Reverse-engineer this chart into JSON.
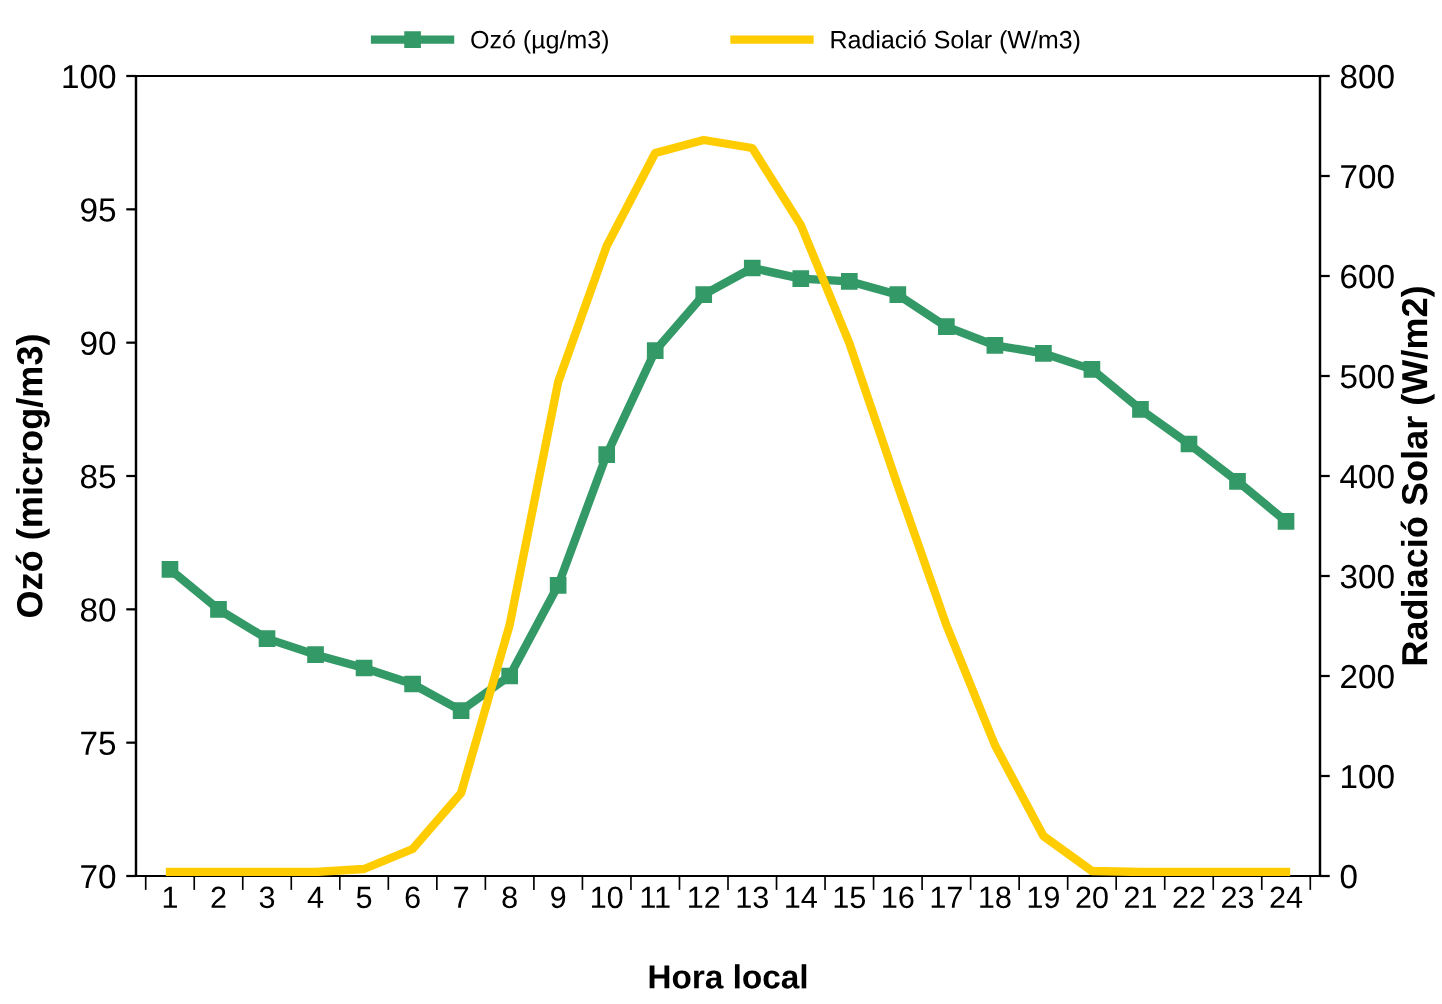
{
  "chart_data": {
    "type": "line",
    "xlabel": "Hora local",
    "ylabel": "Ozó (microg/m3)",
    "y2label": "Radiació Solar (W/m2)",
    "categories": [
      "1",
      "2",
      "3",
      "4",
      "5",
      "6",
      "7",
      "8",
      "9",
      "10",
      "11",
      "12",
      "13",
      "14",
      "15",
      "16",
      "17",
      "18",
      "19",
      "20",
      "21",
      "22",
      "23",
      "24"
    ],
    "series": [
      {
        "name": "Ozó (µg/m3)",
        "color": "#339966",
        "marker": "square",
        "values": [
          81.5,
          80.0,
          78.9,
          78.3,
          77.8,
          77.2,
          76.2,
          77.5,
          80.9,
          85.8,
          89.7,
          91.8,
          92.8,
          92.4,
          92.3,
          91.8,
          90.6,
          89.9,
          89.6,
          89.0,
          87.5,
          86.2,
          84.8,
          83.3
        ]
      },
      {
        "name": "Radiació Solar (W/m3)",
        "color": "#ffcc00",
        "marker": "none",
        "axis": "y2",
        "values": [
          4,
          4,
          4,
          4,
          7,
          27,
          83,
          251,
          494,
          630,
          723,
          736,
          728,
          651,
          533,
          390,
          251,
          131,
          40,
          5,
          4,
          4,
          4,
          4
        ]
      }
    ],
    "ylim": [
      70,
      100
    ],
    "yticks": [
      70,
      75,
      80,
      85,
      90,
      95,
      100
    ],
    "y2lim": [
      0,
      800
    ],
    "y2ticks": [
      0,
      100,
      200,
      300,
      400,
      500,
      600,
      700,
      800
    ],
    "grid": false,
    "legend": "top"
  }
}
